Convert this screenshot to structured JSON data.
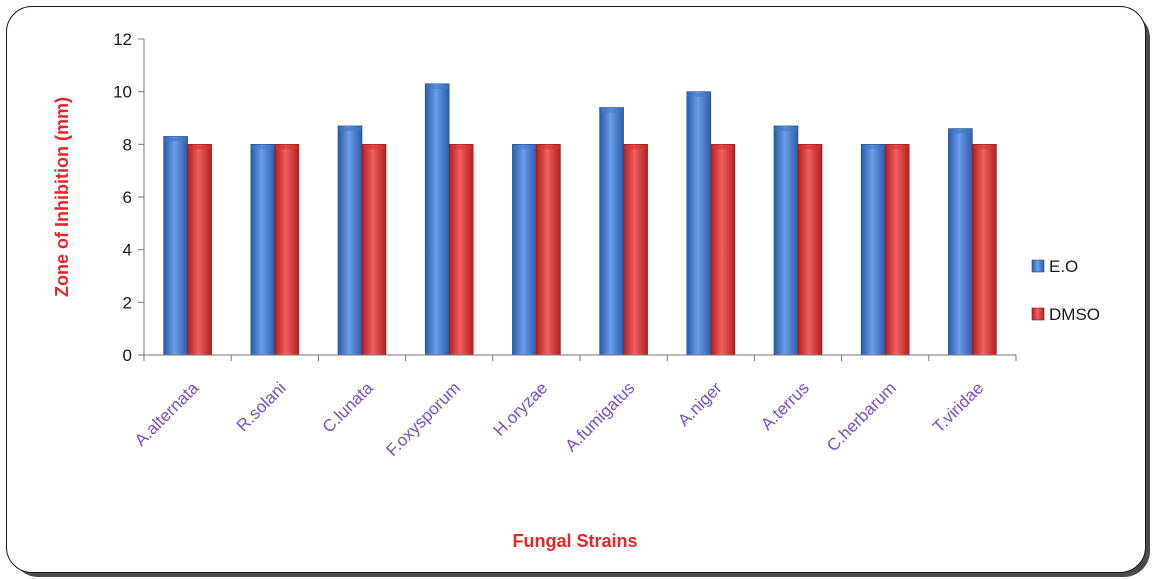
{
  "chart_data": {
    "type": "bar",
    "title": "",
    "xlabel": "Fungal Strains",
    "ylabel": "Zone of Inhibition (mm)",
    "ylim": [
      0,
      12
    ],
    "yticks": [
      0,
      2,
      4,
      6,
      8,
      10,
      12
    ],
    "categories": [
      "A.alternata",
      "R.solani",
      "C.lunata",
      "F.oxysporum",
      "H.oryzae",
      "A.fumigatus",
      "A.niger",
      "A.terrus",
      "C.herbarum",
      "T.viridae"
    ],
    "series": [
      {
        "name": "E.O",
        "color": "#3f78c8",
        "values": [
          8.3,
          8.0,
          8.7,
          10.3,
          8.0,
          9.4,
          10.0,
          8.7,
          8.0,
          8.6
        ]
      },
      {
        "name": "DMSO",
        "color": "#d9312e",
        "values": [
          8.0,
          8.0,
          8.0,
          8.0,
          8.0,
          8.0,
          8.0,
          8.0,
          8.0,
          8.0
        ]
      }
    ],
    "legend_position": "right",
    "grid": false
  }
}
